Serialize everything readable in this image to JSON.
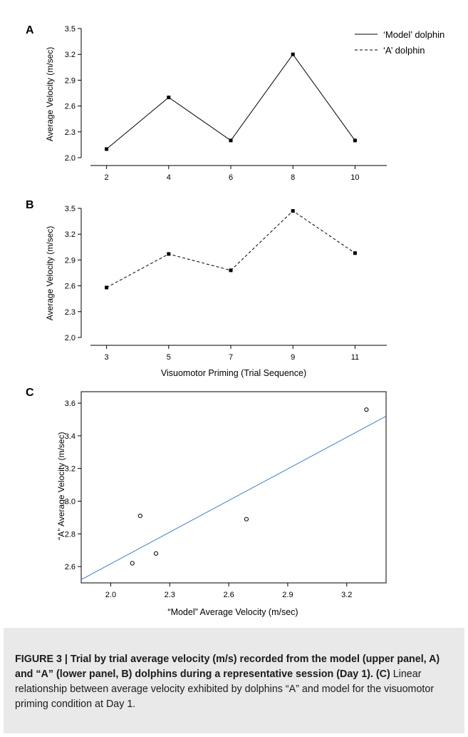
{
  "figure": {
    "panels": [
      {
        "letter": "A"
      },
      {
        "letter": "B"
      },
      {
        "letter": "C"
      }
    ],
    "shared_xlabel": "Visuomotor Priming (Trial Sequence)",
    "legend": [
      {
        "label": "‘Model’ dolphin",
        "style": "solid"
      },
      {
        "label": "‘A’ dolphin",
        "style": "dashed"
      }
    ],
    "colors": {
      "line": "#000000",
      "regression": "#3f7fbf",
      "caption_bg": "#e9e9ea"
    }
  },
  "chart_data": [
    {
      "panel": "A",
      "type": "line",
      "series": [
        {
          "name": "‘Model’ dolphin",
          "x": [
            2,
            4,
            6,
            8,
            10
          ],
          "values": [
            2.1,
            2.7,
            2.2,
            3.2,
            2.2
          ],
          "line_style": "solid",
          "marker": "square"
        }
      ],
      "xticks": [
        "2",
        "4",
        "6",
        "8",
        "10"
      ],
      "xlim": [
        1,
        11
      ],
      "yticks": [
        "2.0",
        "2.3",
        "2.6",
        "2.9",
        "3.2",
        "3.5"
      ],
      "ylim": [
        2.0,
        3.5
      ],
      "ylabel": "Average Velocity (m/sec)",
      "xlabel": "",
      "grid": false,
      "legend_position": "top-right"
    },
    {
      "panel": "B",
      "type": "line",
      "series": [
        {
          "name": "‘A’ dolphin",
          "x": [
            3,
            5,
            7,
            9,
            11
          ],
          "values": [
            2.58,
            2.97,
            2.78,
            3.47,
            2.98
          ],
          "line_style": "dashed",
          "marker": "square"
        }
      ],
      "xticks": [
        "3",
        "5",
        "7",
        "9",
        "11"
      ],
      "xlim": [
        2,
        12
      ],
      "yticks": [
        "2.0",
        "2.3",
        "2.6",
        "2.9",
        "3.2",
        "3.5"
      ],
      "ylim": [
        2.0,
        3.5
      ],
      "ylabel": "Average Velocity (m/sec)",
      "xlabel": "Visuomotor Priming (Trial Sequence)",
      "grid": false
    },
    {
      "panel": "C",
      "type": "scatter",
      "points": {
        "x": [
          2.11,
          2.15,
          2.23,
          2.69,
          3.3
        ],
        "y": [
          2.62,
          2.91,
          2.68,
          2.89,
          3.56
        ]
      },
      "regression_line": {
        "x": [
          1.85,
          3.4
        ],
        "y": [
          2.52,
          3.52
        ]
      },
      "xticks": [
        "2.0",
        "2.3",
        "2.6",
        "2.9",
        "3.2"
      ],
      "xlim": [
        1.85,
        3.4
      ],
      "yticks": [
        "2.6",
        "2.8",
        "3.0",
        "3.2",
        "3.4",
        "3.6"
      ],
      "ylim": [
        2.5,
        3.67
      ],
      "xlabel": "“Model” Average Velocity (m/sec)",
      "ylabel": "“A” Average Velocity (m/sec)",
      "grid": false
    }
  ],
  "caption": {
    "label": "FIGURE 3 |",
    "title": "Trial by trial average velocity (m/s) recorded from the model (upper panel, A) and “A” (lower panel, B) dolphins during a representative session (Day 1).",
    "panel_ref": "(C)",
    "body": "Linear relationship between average velocity exhibited by dolphins “A” and model for the visuomotor priming condition at Day 1."
  }
}
